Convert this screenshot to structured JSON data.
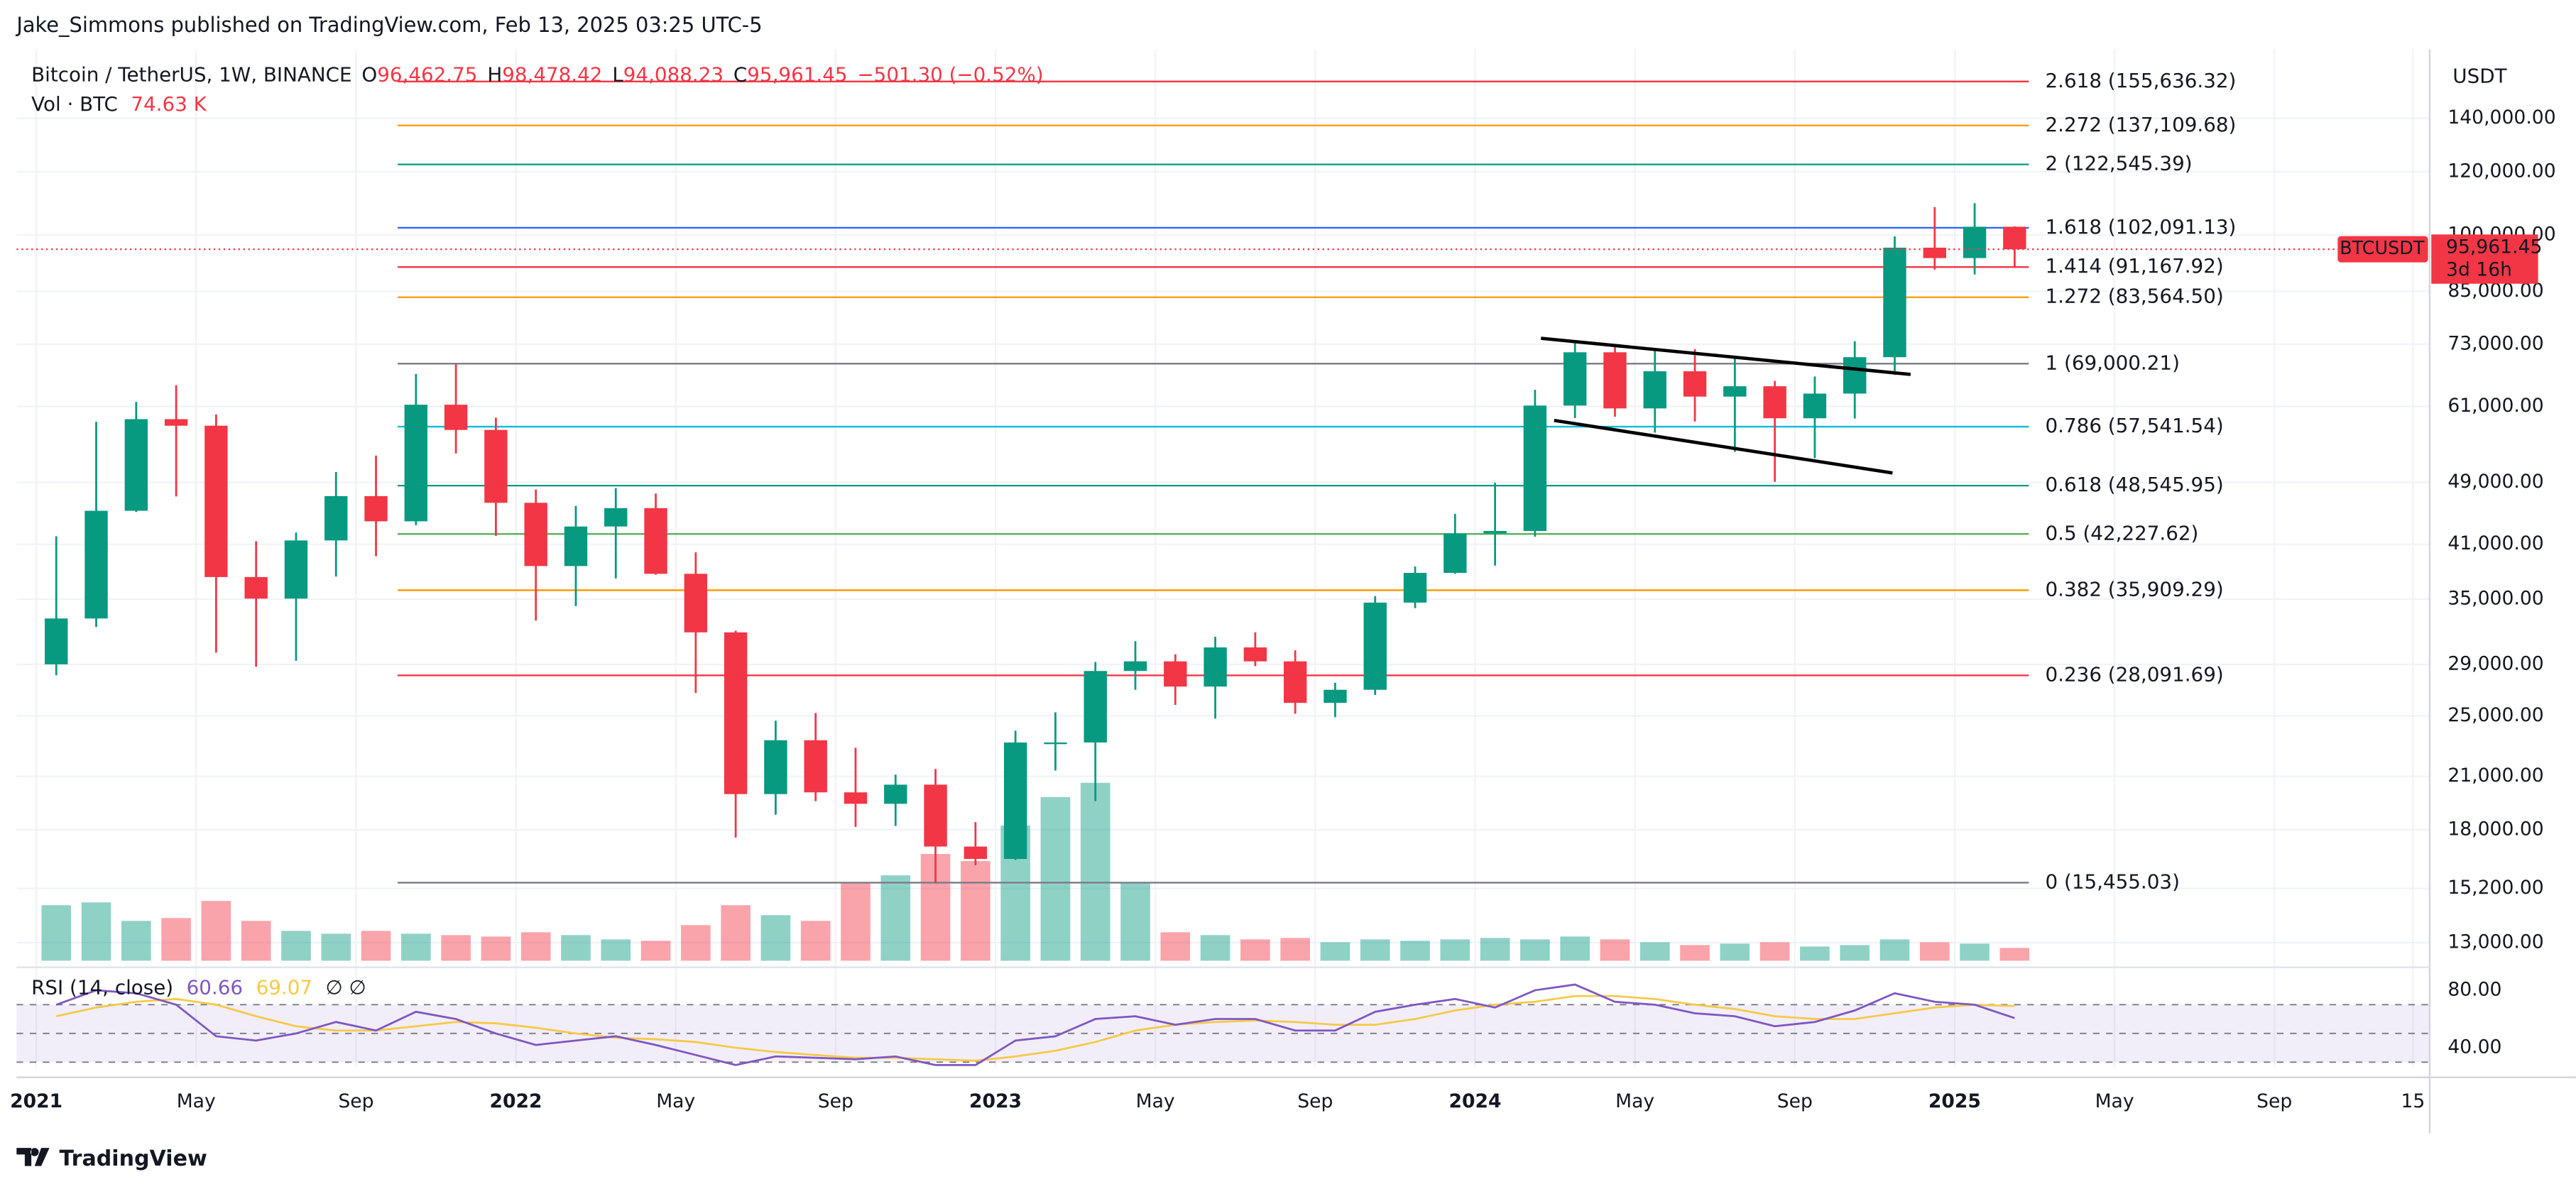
{
  "header": {
    "publisher": "Jake_Simmons published on TradingView.com, Feb 13, 2025 03:25 UTC-5"
  },
  "chart_data": {
    "type": "candlestick",
    "legend": {
      "symbol": "Bitcoin / TetherUS, 1W, BINANCE",
      "o_key": "O",
      "o": "96,462.75",
      "h_key": "H",
      "h": "98,478.42",
      "l_key": "L",
      "l": "94,088.23",
      "c_key": "C",
      "c": "95,961.45",
      "change": "−501.30 (−0.52%)",
      "vol_key": "Vol · BTC",
      "vol": "74.63 K"
    },
    "axis_unit": "USDT",
    "log_scale": true,
    "grid": true,
    "up_color": "#089981",
    "down_color": "#f23645",
    "x": [
      "2021-01",
      "2021-02",
      "2021-03",
      "2021-04",
      "2021-05",
      "2021-06",
      "2021-07",
      "2021-08",
      "2021-09",
      "2021-10",
      "2021-11",
      "2021-12",
      "2022-01",
      "2022-02",
      "2022-03",
      "2022-04",
      "2022-05",
      "2022-06",
      "2022-07",
      "2022-08",
      "2022-09",
      "2022-10",
      "2022-11",
      "2022-12",
      "2023-01",
      "2023-02",
      "2023-03",
      "2023-04",
      "2023-05",
      "2023-06",
      "2023-07",
      "2023-08",
      "2023-09",
      "2023-10",
      "2023-11",
      "2023-12",
      "2024-01",
      "2024-02",
      "2024-03",
      "2024-04",
      "2024-05",
      "2024-06",
      "2024-07",
      "2024-08",
      "2024-09",
      "2024-10",
      "2024-11",
      "2024-12",
      "2025-01",
      "2025-02"
    ],
    "open": [
      29000,
      33100,
      45150,
      58800,
      57700,
      37300,
      35050,
      41450,
      47100,
      43800,
      61300,
      57000,
      46200,
      38500,
      43150,
      45500,
      37650,
      31800,
      19950,
      23300,
      20050,
      19400,
      20500,
      17150,
      16550,
      23150,
      23150,
      28450,
      29250,
      27200,
      30450,
      29250,
      25950,
      26950,
      34650,
      37750,
      42300,
      42600,
      61150,
      71300,
      60650,
      67500,
      62750,
      64650,
      58950,
      63300,
      70300,
      96400,
      93550,
      102400
    ],
    "high": [
      41950,
      58350,
      61800,
      64850,
      59600,
      41350,
      42400,
      50500,
      52950,
      67000,
      69000,
      59050,
      48000,
      45800,
      48200,
      47450,
      40050,
      31950,
      24650,
      25200,
      22800,
      21100,
      21450,
      18400,
      23950,
      25250,
      29200,
      31000,
      29850,
      31400,
      31800,
      30200,
      27500,
      35300,
      38450,
      44750,
      48950,
      64000,
      73800,
      72800,
      71950,
      71950,
      70000,
      65650,
      66500,
      73600,
      99600,
      108350,
      109600,
      102500
    ],
    "low": [
      28100,
      32300,
      45000,
      47050,
      30000,
      28800,
      29300,
      37350,
      39600,
      43300,
      53250,
      42000,
      32900,
      34300,
      37150,
      37550,
      26700,
      17600,
      18800,
      19550,
      18150,
      18200,
      15450,
      16250,
      16500,
      21350,
      19550,
      26950,
      25800,
      24800,
      28850,
      25150,
      24900,
      26550,
      34100,
      37650,
      38550,
      41900,
      59000,
      59200,
      56550,
      58400,
      53500,
      49100,
      52550,
      58900,
      66800,
      90500,
      89250,
      91200
    ],
    "close": [
      33100,
      45150,
      58800,
      57700,
      37300,
      35050,
      41450,
      47100,
      43800,
      61300,
      57000,
      46200,
      38500,
      43150,
      45500,
      37650,
      31800,
      19950,
      23300,
      20050,
      19400,
      20500,
      17150,
      16550,
      23150,
      23150,
      28450,
      29250,
      27200,
      30450,
      29250,
      25950,
      26950,
      34650,
      37750,
      42300,
      42600,
      61150,
      71300,
      60650,
      67500,
      62750,
      64650,
      58950,
      63300,
      70300,
      96400,
      93550,
      102400,
      95961.45
    ],
    "ylim": [
      12340,
      170800
    ],
    "yticks": [
      {
        "value": 13000,
        "label": "13,000.00"
      },
      {
        "value": 15200,
        "label": "15,200.00"
      },
      {
        "value": 18000,
        "label": "18,000.00"
      },
      {
        "value": 21000,
        "label": "21,000.00"
      },
      {
        "value": 25000,
        "label": "25,000.00"
      },
      {
        "value": 29000,
        "label": "29,000.00"
      },
      {
        "value": 35000,
        "label": "35,000.00"
      },
      {
        "value": 41000,
        "label": "41,000.00"
      },
      {
        "value": 49000,
        "label": "49,000.00"
      },
      {
        "value": 61000,
        "label": "61,000.00"
      },
      {
        "value": 73000,
        "label": "73,000.00"
      },
      {
        "value": 85000,
        "label": "85,000.00"
      },
      {
        "value": 100000,
        "label": "100,000.00"
      },
      {
        "value": 120000,
        "label": "120,000.00"
      },
      {
        "value": 140000,
        "label": "140,000.00"
      }
    ],
    "xticks": [
      {
        "value": "2021-01",
        "label": "2021"
      },
      {
        "value": "2021-05",
        "label": "May"
      },
      {
        "value": "2021-09",
        "label": "Sep"
      },
      {
        "value": "2022-01",
        "label": "2022"
      },
      {
        "value": "2022-05",
        "label": "May"
      },
      {
        "value": "2022-09",
        "label": "Sep"
      },
      {
        "value": "2023-01",
        "label": "2023"
      },
      {
        "value": "2023-05",
        "label": "May"
      },
      {
        "value": "2023-09",
        "label": "Sep"
      },
      {
        "value": "2024-01",
        "label": "2024"
      },
      {
        "value": "2024-05",
        "label": "May"
      },
      {
        "value": "2024-09",
        "label": "Sep"
      },
      {
        "value": "2025-01",
        "label": "2025"
      },
      {
        "value": "2025-05",
        "label": "May"
      },
      {
        "value": "2025-09",
        "label": "Sep"
      },
      {
        "value": "2025-12-15",
        "label": "15"
      }
    ],
    "last_price": {
      "symbol": "BTCUSDT",
      "value": 95961.45,
      "label": "95,961.45",
      "countdown": "3d 16h",
      "color": "#f23645"
    },
    "fib_levels": [
      {
        "label": "2.618 (155,636.32)",
        "value": 155636.32,
        "color": "#f23645"
      },
      {
        "label": "2.272 (137,109.68)",
        "value": 137109.68,
        "color": "#ff9800"
      },
      {
        "label": "2 (122,545.39)",
        "value": 122545.39,
        "color": "#089981"
      },
      {
        "label": "1.618 (102,091.13)",
        "value": 102091.13,
        "color": "#2962ff"
      },
      {
        "label": "1.414 (91,167.92)",
        "value": 91167.92,
        "color": "#f23645"
      },
      {
        "label": "1.272 (83,564.50)",
        "value": 83564.5,
        "color": "#ff9800"
      },
      {
        "label": "1 (69,000.21)",
        "value": 69000.21,
        "color": "#787b86"
      },
      {
        "label": "0.786 (57,541.54)",
        "value": 57541.54,
        "color": "#00bcd4"
      },
      {
        "label": "0.618 (48,545.95)",
        "value": 48545.95,
        "color": "#089981"
      },
      {
        "label": "0.5 (42,227.62)",
        "value": 42227.62,
        "color": "#4caf50"
      },
      {
        "label": "0.382 (35,909.29)",
        "value": 35909.29,
        "color": "#ff9800"
      },
      {
        "label": "0.236 (28,091.69)",
        "value": 28091.69,
        "color": "#f23645"
      },
      {
        "label": "0 (15,455.03)",
        "value": 15455.03,
        "color": "#787b86"
      }
    ],
    "volume": {
      "ylim": [
        0,
        3000000
      ],
      "values": [
        780000,
        820000,
        560000,
        600000,
        840000,
        560000,
        420000,
        380000,
        420000,
        380000,
        360000,
        340000,
        400000,
        360000,
        300000,
        280000,
        500000,
        780000,
        640000,
        560000,
        1100000,
        1200000,
        1500000,
        1400000,
        1900000,
        2300000,
        2500000,
        1100000,
        400000,
        360000,
        300000,
        320000,
        260000,
        300000,
        280000,
        300000,
        320000,
        300000,
        340000,
        300000,
        260000,
        220000,
        240000,
        260000,
        200000,
        220000,
        300000,
        260000,
        240000,
        180000
      ]
    },
    "rsi": {
      "label": "RSI (14, close)",
      "value": "60.66",
      "ma_value": "69.07",
      "flags": "∅ ∅",
      "color": "#7e57c2",
      "ma_color": "#f7c948",
      "ylim": [
        26.3,
        92.6
      ],
      "levels": [
        70,
        50,
        30
      ],
      "yticks": [
        {
          "value": 80,
          "label": "80.00"
        },
        {
          "value": 40,
          "label": "40.00"
        }
      ],
      "values": [
        70,
        80,
        78,
        70,
        48,
        45,
        50,
        58,
        52,
        65,
        60,
        50,
        42,
        45,
        48,
        42,
        35,
        28,
        34,
        33,
        32,
        34,
        28,
        28,
        45,
        48,
        60,
        62,
        56,
        60,
        60,
        52,
        52,
        65,
        70,
        74,
        68,
        80,
        84,
        72,
        70,
        64,
        62,
        55,
        58,
        66,
        78,
        72,
        70,
        60.66
      ],
      "ma": [
        62,
        68,
        72,
        74,
        70,
        62,
        55,
        52,
        52,
        55,
        58,
        57,
        54,
        50,
        47,
        46,
        44,
        40,
        37,
        35,
        33,
        33,
        32,
        31,
        34,
        38,
        44,
        52,
        56,
        58,
        59,
        58,
        56,
        56,
        60,
        66,
        70,
        72,
        76,
        76,
        74,
        70,
        67,
        62,
        60,
        60,
        64,
        68,
        70,
        69.07
      ]
    }
  },
  "footer": {
    "brand": "TradingView"
  }
}
